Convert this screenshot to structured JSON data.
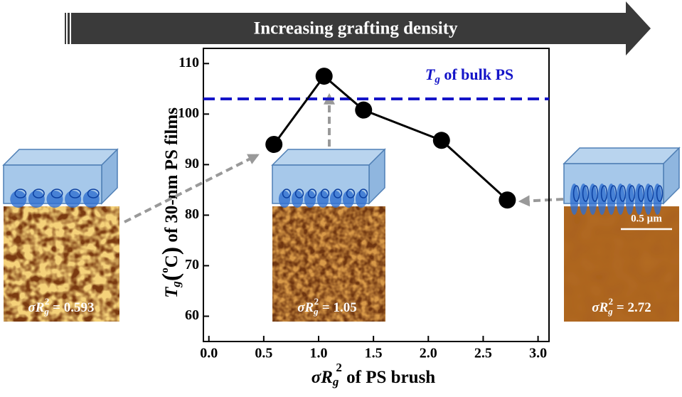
{
  "chart_data": {
    "type": "line",
    "banner": "Increasing grafting density",
    "reference_label": [
      "T",
      "g",
      " of bulk PS"
    ],
    "reference_value": 103,
    "reference_color": "#1414c8",
    "ylabel": [
      "T",
      "g",
      "(",
      "o",
      "C",
      ")",
      " of 30-nm PS films"
    ],
    "xlabel": [
      "σR",
      "g",
      "2",
      " of PS brush"
    ],
    "x": [
      0.593,
      1.05,
      1.41,
      2.12,
      2.72
    ],
    "series": [
      {
        "color": "#000000",
        "values": [
          94,
          107.5,
          100.8,
          94.8,
          83
        ]
      }
    ],
    "xlim": [
      -0.05,
      3.1
    ],
    "xticks": [
      {
        "value": 0,
        "label": "0.0"
      },
      0.5,
      {
        "value": 1,
        "label": "1.0"
      },
      1.5,
      {
        "value": 2,
        "label": "2.0"
      },
      2.5,
      {
        "value": 3,
        "label": "3.0"
      }
    ],
    "ylim": [
      55,
      113
    ],
    "yticks": [
      60,
      70,
      80,
      90,
      100,
      110
    ],
    "panels": [
      {
        "label": [
          "σR",
          "g",
          "2",
          " = 0.593"
        ]
      },
      {
        "label": [
          "σR",
          "g",
          "2",
          " = 1.05"
        ]
      },
      {
        "label": [
          "σR",
          "g",
          "2",
          " = 2.72"
        ],
        "scale_bar": "0.5 µm"
      }
    ]
  }
}
